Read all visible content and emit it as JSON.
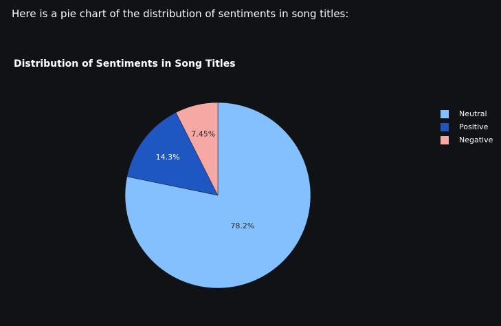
{
  "message": {
    "text": "Here is a pie chart of the distribution of sentiments in song titles:"
  },
  "chart_data": {
    "type": "pie",
    "title": "Distribution of Sentiments in Song Titles",
    "slices": [
      {
        "label": "Neutral",
        "value": 78.2,
        "display": "78.2%",
        "color": "#83c0fd"
      },
      {
        "label": "Positive",
        "value": 14.3,
        "display": "14.3%",
        "color": "#1f57c2"
      },
      {
        "label": "Negative",
        "value": 7.45,
        "display": "7.45%",
        "color": "#f6a8a4"
      }
    ],
    "legend_position": "top-right",
    "background": "#111216"
  }
}
